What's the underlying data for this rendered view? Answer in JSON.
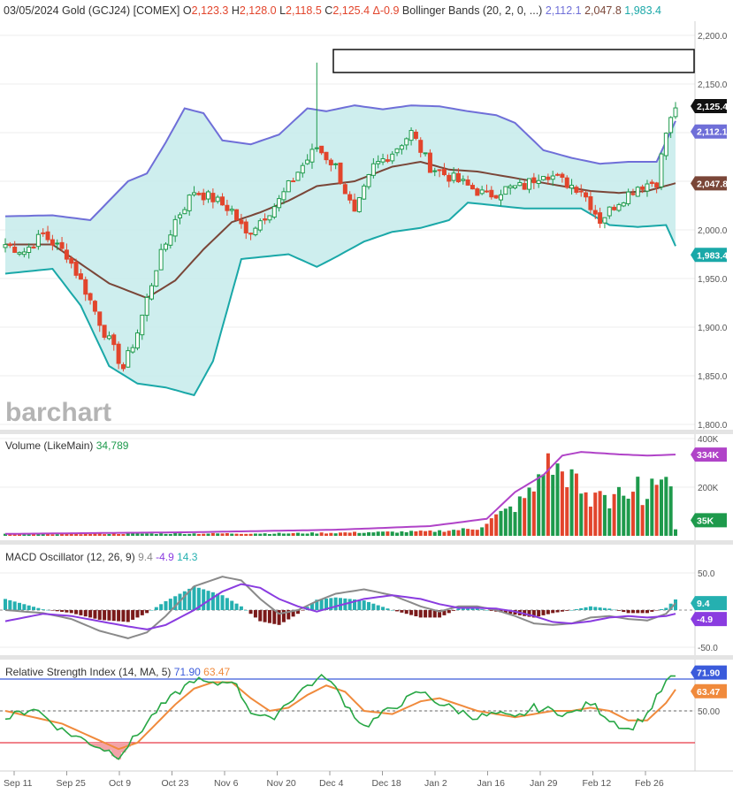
{
  "header": {
    "date": "03/05/2024",
    "symbol": "Gold (GCJ24) [COMEX]",
    "open_label": "O",
    "open": "2,123.3",
    "high_label": "H",
    "high": "2,128.0",
    "low_label": "L",
    "low": "2,118.5",
    "close_label": "C",
    "close": "2,125.4",
    "change": "Δ-0.9",
    "bb_label": "Bollinger Bands (20, 2, 0, ...)",
    "bb_upper": "2,112.1",
    "bb_mid": "2,047.8",
    "bb_lower": "1,983.4"
  },
  "watermark": "barchart",
  "colors": {
    "up": "#1e9a4c",
    "down": "#e2452c",
    "bb_band": "#6f6fd8",
    "bb_fill": "#c9ecec",
    "bb_mid": "#7a4638",
    "bb_lower": "#1aa8a8",
    "volume_avg": "#b043c8",
    "macd": "#8a8a8a",
    "macd_signal": "#8a3ce0",
    "hist_pos": "#25b0b0",
    "hist_neg": "#7a1a1a",
    "rsi": "#28a745",
    "rsi_ma": "#f08a3c",
    "rsi_upper": "#3b5bdb",
    "rsi_lower": "#e63946"
  },
  "time_axis": [
    "Sep 11",
    "Sep 25",
    "Oct 9",
    "Oct 23",
    "Nov 6",
    "Nov 20",
    "Dec 4",
    "Dec 18",
    "Jan 2",
    "Jan 16",
    "Jan 29",
    "Feb 12",
    "Feb 26"
  ],
  "chart_data": [
    {
      "type": "candlestick",
      "name": "price",
      "y_ticks": [
        "2,200.0",
        "2,150.0",
        "2,100.0",
        "2,050.0",
        "2,000.0",
        "1,950.0",
        "1,900.0",
        "1,850.0",
        "1,800.0"
      ],
      "ylim": [
        1800,
        2210
      ],
      "last_close_tag": "2,125.4",
      "bb_upper_tag": "2,112.1",
      "bb_mid_tag": "2,047.8",
      "bb_lower_tag": "1,983.4",
      "close_anchors": [
        [
          0,
          1985
        ],
        [
          4,
          1978
        ],
        [
          8,
          1995
        ],
        [
          13,
          1975
        ],
        [
          17,
          1938
        ],
        [
          21,
          1895
        ],
        [
          25,
          1858
        ],
        [
          28,
          1895
        ],
        [
          32,
          1962
        ],
        [
          36,
          2010
        ],
        [
          40,
          2040
        ],
        [
          44,
          2032
        ],
        [
          48,
          2020
        ],
        [
          51,
          1995
        ],
        [
          54,
          2010
        ],
        [
          58,
          2030
        ],
        [
          62,
          2060
        ],
        [
          66,
          2085
        ],
        [
          70,
          2065
        ],
        [
          74,
          2015
        ],
        [
          78,
          2065
        ],
        [
          82,
          2080
        ],
        [
          86,
          2100
        ],
        [
          90,
          2065
        ],
        [
          94,
          2055
        ],
        [
          98,
          2045
        ],
        [
          102,
          2035
        ],
        [
          106,
          2042
        ],
        [
          110,
          2045
        ],
        [
          114,
          2060
        ],
        [
          118,
          2050
        ],
        [
          122,
          2042
        ],
        [
          126,
          2010
        ],
        [
          130,
          2030
        ],
        [
          134,
          2045
        ],
        [
          138,
          2050
        ],
        [
          140,
          2100
        ],
        [
          142,
          2125.4
        ]
      ],
      "spike": {
        "index": 66,
        "high": 2172
      },
      "bb_upper": [
        [
          0,
          2014
        ],
        [
          10,
          2015
        ],
        [
          18,
          2010
        ],
        [
          26,
          2050
        ],
        [
          30,
          2058
        ],
        [
          34,
          2090
        ],
        [
          38,
          2125
        ],
        [
          42,
          2120
        ],
        [
          46,
          2092
        ],
        [
          52,
          2088
        ],
        [
          58,
          2098
        ],
        [
          64,
          2125
        ],
        [
          68,
          2122
        ],
        [
          74,
          2128
        ],
        [
          80,
          2124
        ],
        [
          86,
          2128
        ],
        [
          92,
          2127
        ],
        [
          98,
          2122
        ],
        [
          104,
          2118
        ],
        [
          108,
          2110
        ],
        [
          114,
          2082
        ],
        [
          120,
          2074
        ],
        [
          126,
          2068
        ],
        [
          132,
          2070
        ],
        [
          138,
          2070
        ],
        [
          142,
          2112
        ]
      ],
      "bb_mid": [
        [
          0,
          1985
        ],
        [
          10,
          1985
        ],
        [
          16,
          1965
        ],
        [
          22,
          1945
        ],
        [
          30,
          1930
        ],
        [
          36,
          1948
        ],
        [
          42,
          1980
        ],
        [
          48,
          2008
        ],
        [
          54,
          2018
        ],
        [
          60,
          2030
        ],
        [
          66,
          2045
        ],
        [
          74,
          2050
        ],
        [
          82,
          2065
        ],
        [
          88,
          2070
        ],
        [
          94,
          2062
        ],
        [
          100,
          2060
        ],
        [
          106,
          2055
        ],
        [
          112,
          2050
        ],
        [
          118,
          2045
        ],
        [
          124,
          2040
        ],
        [
          130,
          2038
        ],
        [
          136,
          2040
        ],
        [
          142,
          2048
        ]
      ],
      "bb_lower": [
        [
          0,
          1955
        ],
        [
          10,
          1960
        ],
        [
          16,
          1922
        ],
        [
          22,
          1860
        ],
        [
          28,
          1842
        ],
        [
          34,
          1838
        ],
        [
          40,
          1830
        ],
        [
          44,
          1865
        ],
        [
          50,
          1970
        ],
        [
          54,
          1972
        ],
        [
          60,
          1975
        ],
        [
          66,
          1962
        ],
        [
          70,
          1972
        ],
        [
          76,
          1988
        ],
        [
          82,
          1998
        ],
        [
          88,
          2002
        ],
        [
          94,
          2010
        ],
        [
          98,
          2028
        ],
        [
          104,
          2025
        ],
        [
          110,
          2022
        ],
        [
          116,
          2022
        ],
        [
          122,
          2022
        ],
        [
          128,
          2005
        ],
        [
          134,
          2003
        ],
        [
          140,
          2005
        ],
        [
          142,
          1983.4
        ]
      ]
    },
    {
      "type": "bar",
      "name": "Volume (LikeMain)",
      "value_label": "34,789",
      "y_ticks": [
        "400K",
        "200K"
      ],
      "ylim": [
        0,
        400000
      ],
      "volume_anchors": [
        [
          0,
          8000
        ],
        [
          60,
          10000
        ],
        [
          90,
          18000
        ],
        [
          100,
          30000
        ],
        [
          104,
          80000
        ],
        [
          108,
          120000
        ],
        [
          112,
          190000
        ],
        [
          114,
          300000
        ],
        [
          118,
          260000
        ],
        [
          120,
          240000
        ],
        [
          124,
          125000
        ],
        [
          126,
          210000
        ],
        [
          128,
          135000
        ],
        [
          130,
          210000
        ],
        [
          132,
          125000
        ],
        [
          134,
          200000
        ],
        [
          136,
          130000
        ],
        [
          138,
          250000
        ],
        [
          140,
          320000
        ],
        [
          142,
          35000
        ]
      ],
      "avg_anchors": [
        [
          0,
          8000
        ],
        [
          40,
          15000
        ],
        [
          70,
          25000
        ],
        [
          90,
          40000
        ],
        [
          102,
          70000
        ],
        [
          108,
          180000
        ],
        [
          114,
          250000
        ],
        [
          118,
          330000
        ],
        [
          122,
          345000
        ],
        [
          130,
          335000
        ],
        [
          136,
          330000
        ],
        [
          142,
          334000
        ]
      ],
      "avg_tag": "334K",
      "value_tag": "35K"
    },
    {
      "type": "line",
      "name": "MACD Oscillator (12, 26, 9)",
      "macd_value": "9.4",
      "signal_value": "-4.9",
      "hist_value": "14.3",
      "y_ticks": [
        "50.0",
        "-50.0"
      ],
      "ylim": [
        -60,
        60
      ],
      "macd_anchors": [
        [
          0,
          0
        ],
        [
          8,
          -4
        ],
        [
          14,
          -12
        ],
        [
          20,
          -28
        ],
        [
          26,
          -38
        ],
        [
          30,
          -30
        ],
        [
          34,
          -8
        ],
        [
          40,
          32
        ],
        [
          46,
          45
        ],
        [
          50,
          40
        ],
        [
          54,
          15
        ],
        [
          58,
          -5
        ],
        [
          62,
          0
        ],
        [
          66,
          12
        ],
        [
          70,
          22
        ],
        [
          76,
          28
        ],
        [
          82,
          20
        ],
        [
          88,
          5
        ],
        [
          92,
          -2
        ],
        [
          96,
          5
        ],
        [
          100,
          5
        ],
        [
          104,
          0
        ],
        [
          108,
          -8
        ],
        [
          112,
          -18
        ],
        [
          116,
          -20
        ],
        [
          120,
          -18
        ],
        [
          124,
          -10
        ],
        [
          128,
          -8
        ],
        [
          132,
          -12
        ],
        [
          136,
          -14
        ],
        [
          140,
          -5
        ],
        [
          142,
          9.4
        ]
      ],
      "signal_anchors": [
        [
          0,
          -15
        ],
        [
          8,
          -5
        ],
        [
          14,
          -8
        ],
        [
          20,
          -15
        ],
        [
          26,
          -22
        ],
        [
          30,
          -26
        ],
        [
          34,
          -20
        ],
        [
          40,
          0
        ],
        [
          46,
          25
        ],
        [
          50,
          35
        ],
        [
          54,
          30
        ],
        [
          58,
          15
        ],
        [
          62,
          5
        ],
        [
          66,
          -2
        ],
        [
          70,
          5
        ],
        [
          76,
          15
        ],
        [
          82,
          20
        ],
        [
          88,
          15
        ],
        [
          92,
          8
        ],
        [
          96,
          3
        ],
        [
          100,
          3
        ],
        [
          104,
          2
        ],
        [
          108,
          -2
        ],
        [
          112,
          -8
        ],
        [
          116,
          -16
        ],
        [
          120,
          -18
        ],
        [
          124,
          -15
        ],
        [
          128,
          -10
        ],
        [
          132,
          -8
        ],
        [
          136,
          -10
        ],
        [
          140,
          -8
        ],
        [
          142,
          -4.9
        ]
      ]
    },
    {
      "type": "line",
      "name": "Relative Strength Index (14, MA, 5)",
      "rsi_value": "71.90",
      "ma_value": "63.47",
      "y_ticks": [
        "50.00"
      ],
      "ylim": [
        10,
        85
      ],
      "upper_line": 70,
      "lower_line": 30,
      "rsi_anchors": [
        [
          0,
          45
        ],
        [
          6,
          52
        ],
        [
          12,
          38
        ],
        [
          18,
          30
        ],
        [
          24,
          22
        ],
        [
          28,
          35
        ],
        [
          32,
          50
        ],
        [
          36,
          60
        ],
        [
          40,
          70
        ],
        [
          44,
          66
        ],
        [
          48,
          70
        ],
        [
          52,
          50
        ],
        [
          56,
          44
        ],
        [
          60,
          56
        ],
        [
          64,
          66
        ],
        [
          68,
          72
        ],
        [
          72,
          55
        ],
        [
          76,
          40
        ],
        [
          82,
          52
        ],
        [
          88,
          62
        ],
        [
          92,
          55
        ],
        [
          96,
          50
        ],
        [
          100,
          46
        ],
        [
          104,
          48
        ],
        [
          108,
          45
        ],
        [
          112,
          52
        ],
        [
          116,
          50
        ],
        [
          120,
          48
        ],
        [
          124,
          55
        ],
        [
          128,
          45
        ],
        [
          132,
          38
        ],
        [
          136,
          48
        ],
        [
          140,
          68
        ],
        [
          142,
          71.9
        ]
      ],
      "ma_anchors": [
        [
          0,
          50
        ],
        [
          6,
          46
        ],
        [
          12,
          42
        ],
        [
          18,
          34
        ],
        [
          24,
          26
        ],
        [
          28,
          30
        ],
        [
          32,
          42
        ],
        [
          36,
          54
        ],
        [
          40,
          64
        ],
        [
          44,
          68
        ],
        [
          48,
          68
        ],
        [
          52,
          58
        ],
        [
          56,
          50
        ],
        [
          60,
          52
        ],
        [
          64,
          60
        ],
        [
          68,
          66
        ],
        [
          72,
          62
        ],
        [
          76,
          50
        ],
        [
          82,
          48
        ],
        [
          88,
          56
        ],
        [
          92,
          58
        ],
        [
          96,
          54
        ],
        [
          100,
          50
        ],
        [
          104,
          48
        ],
        [
          108,
          46
        ],
        [
          112,
          48
        ],
        [
          116,
          50
        ],
        [
          120,
          50
        ],
        [
          124,
          52
        ],
        [
          128,
          50
        ],
        [
          132,
          44
        ],
        [
          136,
          44
        ],
        [
          140,
          55
        ],
        [
          142,
          63.47
        ]
      ]
    }
  ]
}
